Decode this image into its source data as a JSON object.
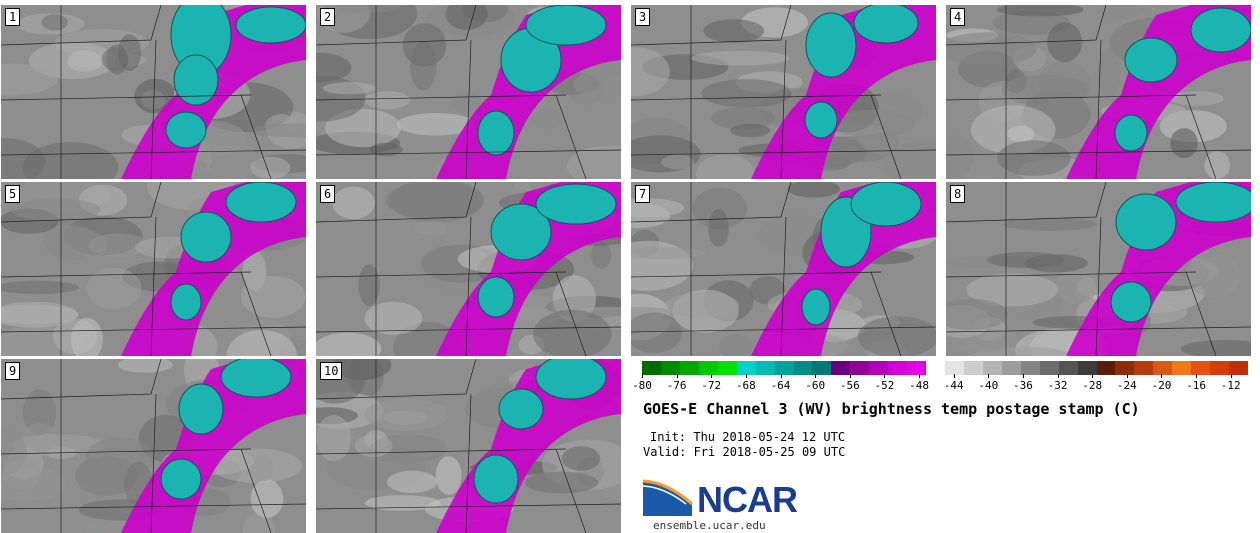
{
  "panels": [
    {
      "label": "1"
    },
    {
      "label": "2"
    },
    {
      "label": "3"
    },
    {
      "label": "4"
    },
    {
      "label": "5"
    },
    {
      "label": "6"
    },
    {
      "label": "7"
    },
    {
      "label": "8"
    },
    {
      "label": "9"
    },
    {
      "label": "10"
    }
  ],
  "colorbar": {
    "ticks": [
      "-80",
      "-76",
      "-72",
      "-68",
      "-64",
      "-60",
      "-56",
      "-52",
      "-48",
      "-44",
      "-40",
      "-36",
      "-32",
      "-28",
      "-24",
      "-20",
      "-16",
      "-12"
    ],
    "range": [
      -80,
      -10
    ],
    "colors": [
      "#006b00",
      "#008a00",
      "#00a800",
      "#00c800",
      "#00e000",
      "#00d2c8",
      "#00bab4",
      "#00a09c",
      "#008c88",
      "#007874",
      "#6a0080",
      "#900098",
      "#b400b4",
      "#d200d2",
      "#e600e6",
      "#ffffff",
      "#e4e4e4",
      "#cccccc",
      "#b4b4b4",
      "#9c9c9c",
      "#848484",
      "#6c6c6c",
      "#545454",
      "#3c3c3c",
      "#5a1e0a",
      "#8c2c0a",
      "#b43c10",
      "#d85a14",
      "#f07818",
      "#e85010",
      "#d43c08",
      "#c03008"
    ]
  },
  "title": "GOES-E Channel 3 (WV) brightness temp postage stamp (C)",
  "init": "Init: Thu 2018-05-24 12 UTC",
  "valid": "Valid: Fri 2018-05-25 09 UTC",
  "logo": {
    "text": "NCAR",
    "url": "ensemble.ucar.edu"
  }
}
